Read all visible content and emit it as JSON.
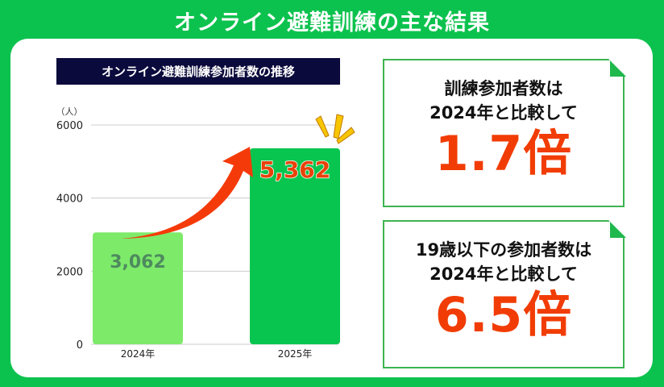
{
  "title": "オンライン避難訓練の主な結果",
  "chart_data": {
    "type": "bar",
    "title": "オンライン避難訓練参加者数の推移",
    "unit_label": "（人）",
    "categories": [
      "2024年",
      "2025年"
    ],
    "values": [
      3062,
      5362
    ],
    "value_labels": [
      "3,062",
      "5,362"
    ],
    "ylim": [
      0,
      6000
    ],
    "yticks": [
      "0",
      "2000",
      "4000",
      "6000"
    ],
    "grid": true,
    "bar_colors": [
      "#7dea6a",
      "#08c550"
    ],
    "annotation": "red upward arrow from 2024 bar to 2025 bar"
  },
  "cards": [
    {
      "line1": "訓練参加者数は",
      "line2": "2024年と比較して",
      "big": "1.7倍"
    },
    {
      "line1": "19歳以下の参加者数は",
      "line2": "2024年と比較して",
      "big": "6.5倍"
    }
  ],
  "colors": {
    "background": "#0cc24e",
    "accent": "#f13d05",
    "title_bar": "#0b0a3c"
  }
}
